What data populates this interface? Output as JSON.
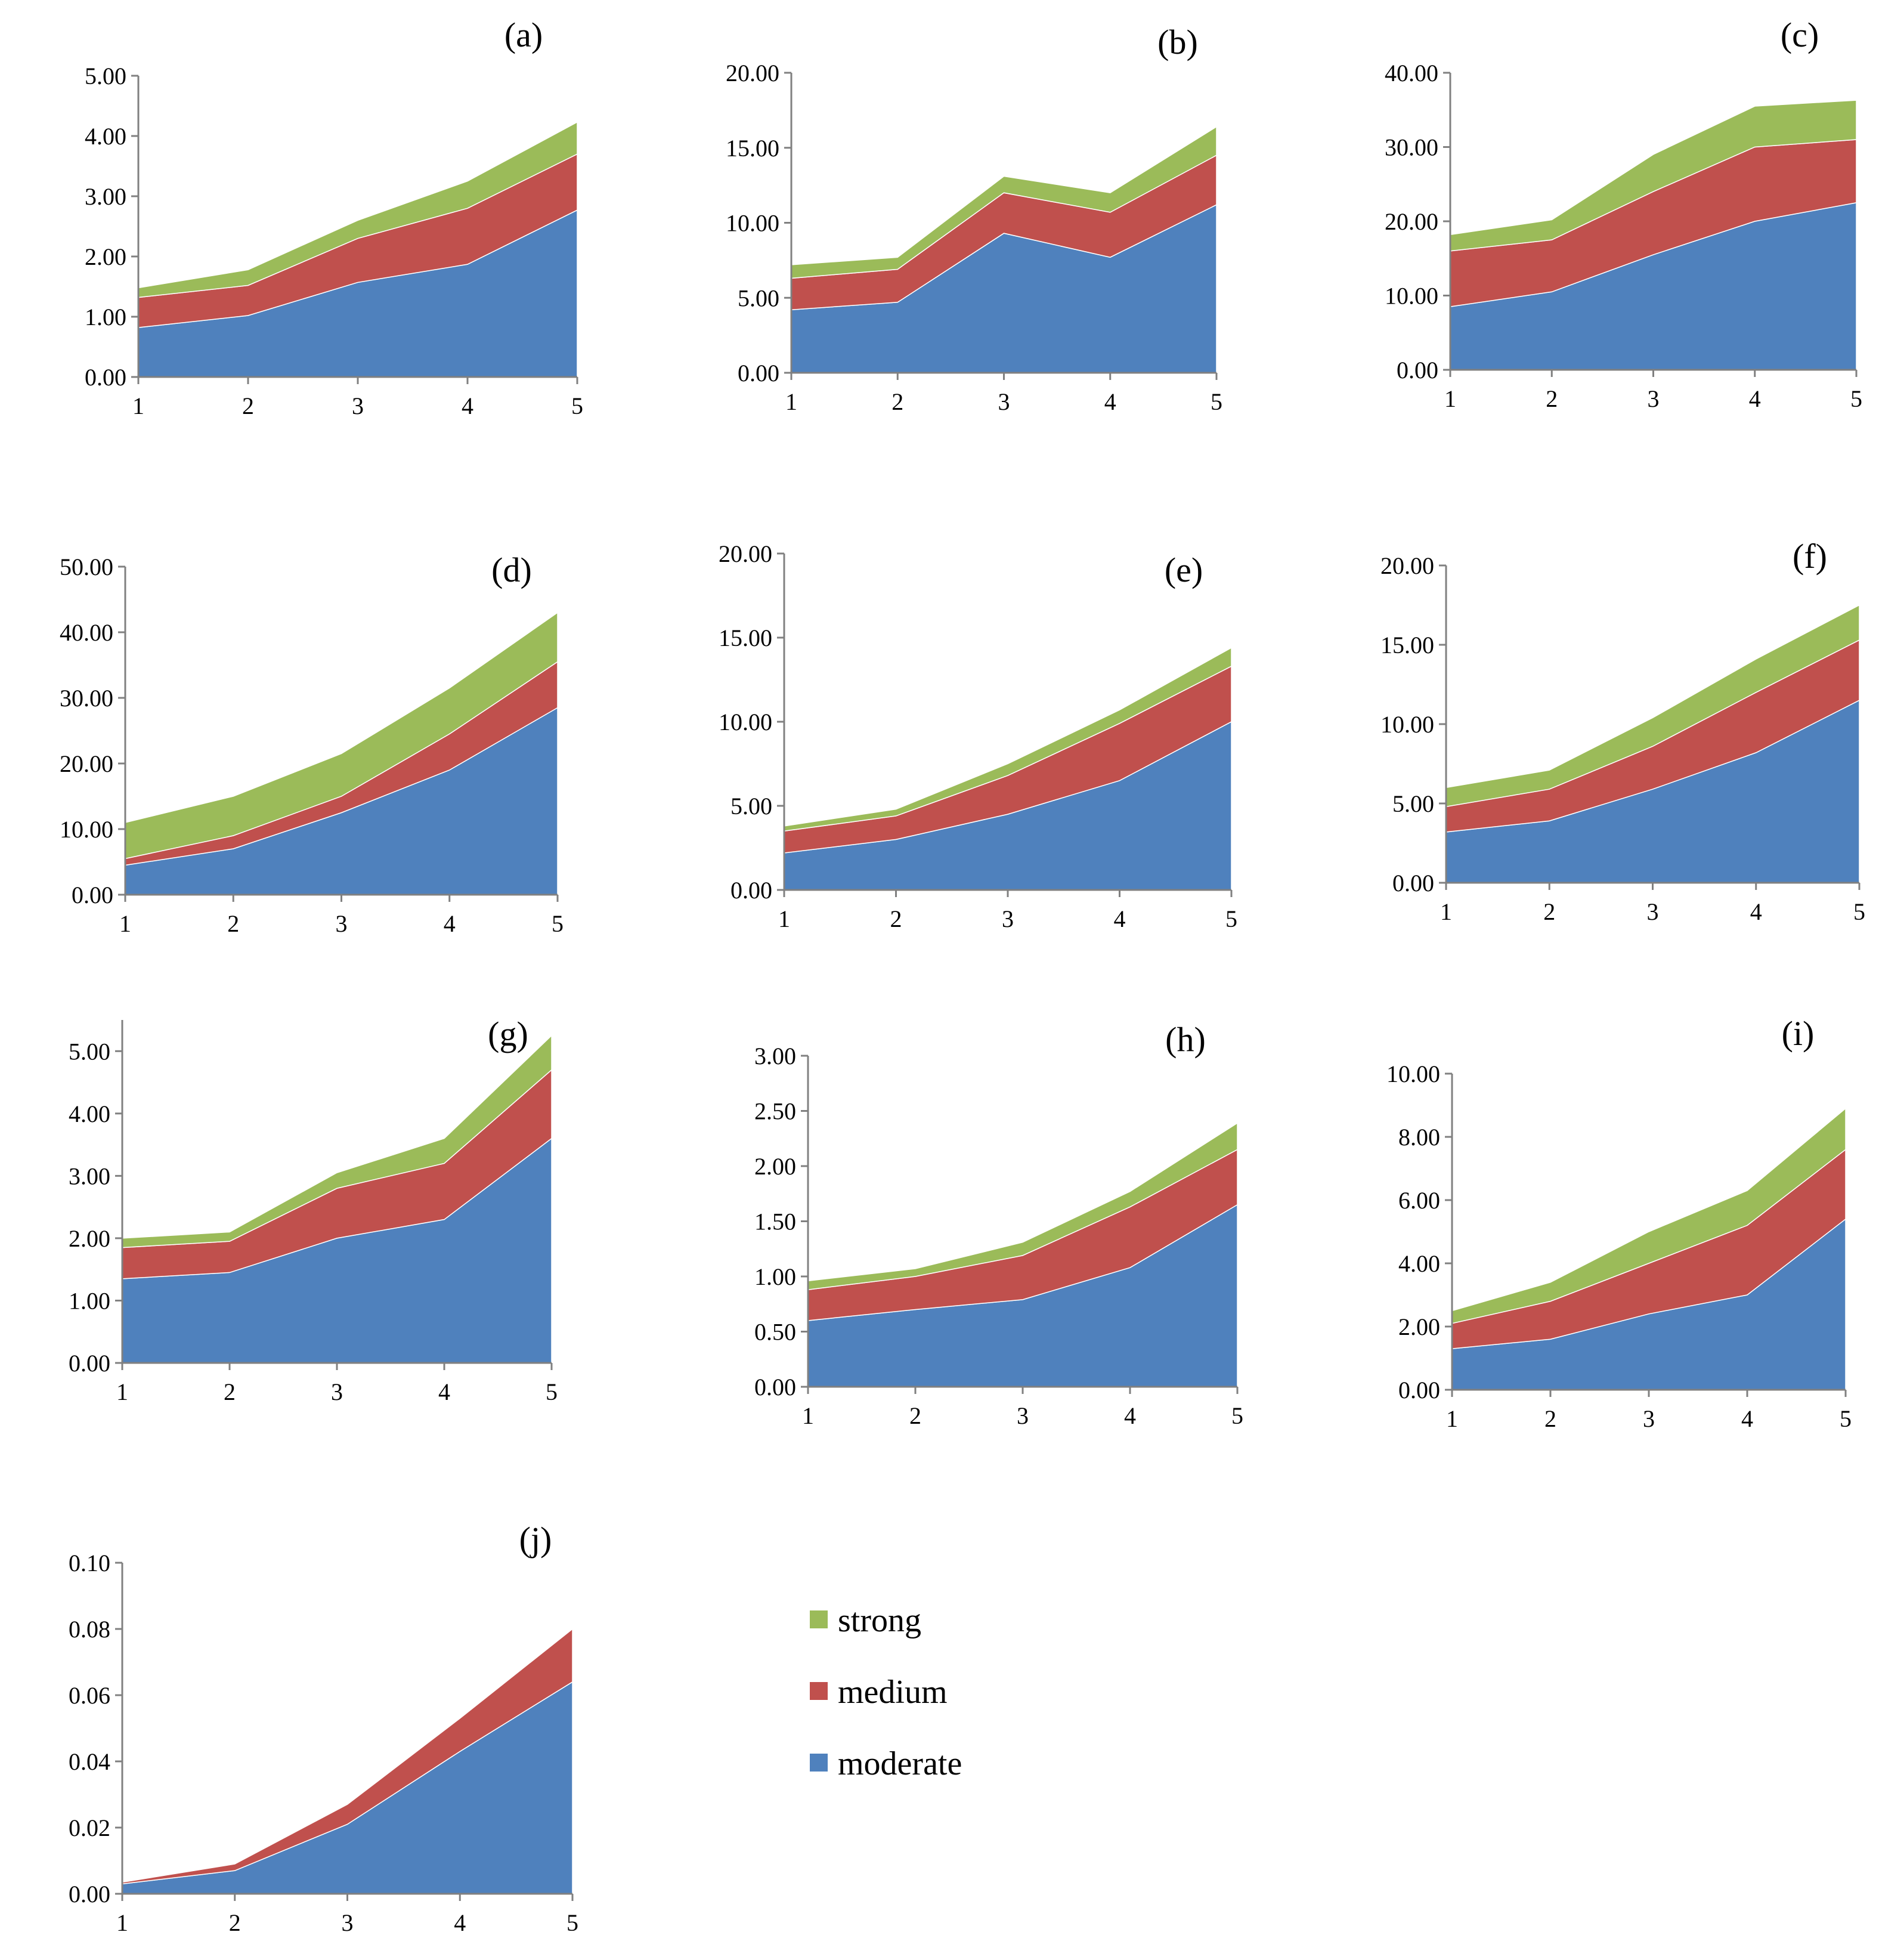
{
  "colors": {
    "moderate": "#4F81BD",
    "medium": "#C0504D",
    "strong": "#9BBB59",
    "axis": "#808080"
  },
  "legend": {
    "items": [
      {
        "key": "strong",
        "label": "strong"
      },
      {
        "key": "medium",
        "label": "medium"
      },
      {
        "key": "moderate",
        "label": "moderate"
      }
    ]
  },
  "chart_data": [
    {
      "panel": "(a)",
      "type": "area",
      "stacked": true,
      "categories": [
        "1",
        "2",
        "3",
        "4",
        "5"
      ],
      "ylim": [
        0,
        5
      ],
      "yticks": [
        "0.00",
        "1.00",
        "2.00",
        "3.00",
        "4.00",
        "5.00"
      ],
      "series": [
        {
          "name": "moderate",
          "values": [
            0.82,
            1.02,
            1.57,
            1.87,
            2.77
          ]
        },
        {
          "name": "medium",
          "values": [
            0.5,
            0.5,
            0.73,
            0.93,
            0.93
          ]
        },
        {
          "name": "strong",
          "values": [
            0.16,
            0.26,
            0.3,
            0.45,
            0.53
          ]
        }
      ]
    },
    {
      "panel": "(b)",
      "type": "area",
      "stacked": true,
      "categories": [
        "1",
        "2",
        "3",
        "4",
        "5"
      ],
      "ylim": [
        0,
        20
      ],
      "yticks": [
        "0.00",
        "5.00",
        "10.00",
        "15.00",
        "20.00"
      ],
      "series": [
        {
          "name": "moderate",
          "values": [
            4.2,
            4.7,
            9.3,
            7.7,
            11.2
          ]
        },
        {
          "name": "medium",
          "values": [
            2.1,
            2.2,
            2.7,
            3.0,
            3.3
          ]
        },
        {
          "name": "strong",
          "values": [
            0.9,
            0.8,
            1.1,
            1.3,
            1.9
          ]
        }
      ]
    },
    {
      "panel": "(c)",
      "type": "area",
      "stacked": true,
      "categories": [
        "1",
        "2",
        "3",
        "4",
        "5"
      ],
      "ylim": [
        0,
        40
      ],
      "yticks": [
        "0.00",
        "10.00",
        "20.00",
        "30.00",
        "40.00"
      ],
      "series": [
        {
          "name": "moderate",
          "values": [
            8.5,
            10.5,
            15.5,
            20.0,
            22.5
          ]
        },
        {
          "name": "medium",
          "values": [
            7.5,
            7.0,
            8.5,
            10.0,
            8.5
          ]
        },
        {
          "name": "strong",
          "values": [
            2.2,
            2.7,
            5.0,
            5.5,
            5.3
          ]
        }
      ]
    },
    {
      "panel": "(d)",
      "type": "area",
      "stacked": true,
      "categories": [
        "1",
        "2",
        "3",
        "4",
        "5"
      ],
      "ylim": [
        0,
        50
      ],
      "yticks": [
        "0.00",
        "10.00",
        "20.00",
        "30.00",
        "40.00",
        "50.00"
      ],
      "series": [
        {
          "name": "moderate",
          "values": [
            4.5,
            7.0,
            12.5,
            19.0,
            28.5
          ]
        },
        {
          "name": "medium",
          "values": [
            1.0,
            2.0,
            2.5,
            5.5,
            7.0
          ]
        },
        {
          "name": "strong",
          "values": [
            5.5,
            6.0,
            6.5,
            7.0,
            7.5
          ]
        }
      ]
    },
    {
      "panel": "(e)",
      "type": "area",
      "stacked": true,
      "categories": [
        "1",
        "2",
        "3",
        "4",
        "5"
      ],
      "ylim": [
        0,
        20
      ],
      "yticks": [
        "0.00",
        "5.00",
        "10.00",
        "15.00",
        "20.00"
      ],
      "series": [
        {
          "name": "moderate",
          "values": [
            2.2,
            3.0,
            4.5,
            6.5,
            10.0
          ]
        },
        {
          "name": "medium",
          "values": [
            1.3,
            1.4,
            2.3,
            3.4,
            3.3
          ]
        },
        {
          "name": "strong",
          "values": [
            0.3,
            0.4,
            0.7,
            0.8,
            1.1
          ]
        }
      ]
    },
    {
      "panel": "(f)",
      "type": "area",
      "stacked": true,
      "categories": [
        "1",
        "2",
        "3",
        "4",
        "5"
      ],
      "ylim": [
        0,
        20
      ],
      "yticks": [
        "0.00",
        "5.00",
        "10.00",
        "15.00",
        "20.00"
      ],
      "series": [
        {
          "name": "moderate",
          "values": [
            3.2,
            3.9,
            5.9,
            8.2,
            11.5
          ]
        },
        {
          "name": "medium",
          "values": [
            1.6,
            2.0,
            2.7,
            3.8,
            3.8
          ]
        },
        {
          "name": "strong",
          "values": [
            1.2,
            1.2,
            1.8,
            2.1,
            2.2
          ]
        }
      ]
    },
    {
      "panel": "(g)",
      "type": "area",
      "stacked": true,
      "categories": [
        "1",
        "2",
        "3",
        "4",
        "5"
      ],
      "ylim": [
        0,
        5.5
      ],
      "yticks": [
        "0.00",
        "1.00",
        "2.00",
        "3.00",
        "4.00",
        "5.00"
      ],
      "series": [
        {
          "name": "moderate",
          "values": [
            1.35,
            1.45,
            2.0,
            2.3,
            3.6
          ]
        },
        {
          "name": "medium",
          "values": [
            0.5,
            0.5,
            0.8,
            0.9,
            1.1
          ]
        },
        {
          "name": "strong",
          "values": [
            0.15,
            0.15,
            0.25,
            0.4,
            0.55
          ]
        }
      ]
    },
    {
      "panel": "(h)",
      "type": "area",
      "stacked": true,
      "categories": [
        "1",
        "2",
        "3",
        "4",
        "5"
      ],
      "ylim": [
        0,
        3
      ],
      "yticks": [
        "0.00",
        "0.50",
        "1.00",
        "1.50",
        "2.00",
        "2.50",
        "3.00"
      ],
      "series": [
        {
          "name": "moderate",
          "values": [
            0.6,
            0.7,
            0.79,
            1.08,
            1.65
          ]
        },
        {
          "name": "medium",
          "values": [
            0.28,
            0.3,
            0.4,
            0.55,
            0.5
          ]
        },
        {
          "name": "strong",
          "values": [
            0.08,
            0.07,
            0.12,
            0.14,
            0.24
          ]
        }
      ]
    },
    {
      "panel": "(i)",
      "type": "area",
      "stacked": true,
      "categories": [
        "1",
        "2",
        "3",
        "4",
        "5"
      ],
      "ylim": [
        0,
        10
      ],
      "yticks": [
        "0.00",
        "2.00",
        "4.00",
        "6.00",
        "8.00",
        "10.00"
      ],
      "series": [
        {
          "name": "moderate",
          "values": [
            1.3,
            1.6,
            2.4,
            3.0,
            5.4
          ]
        },
        {
          "name": "medium",
          "values": [
            0.8,
            1.2,
            1.6,
            2.2,
            2.2
          ]
        },
        {
          "name": "strong",
          "values": [
            0.4,
            0.6,
            1.0,
            1.1,
            1.3
          ]
        }
      ]
    },
    {
      "panel": "(j)",
      "type": "area",
      "stacked": true,
      "categories": [
        "1",
        "2",
        "3",
        "4",
        "5"
      ],
      "ylim": [
        0,
        0.1
      ],
      "yticks": [
        "0.00",
        "0.02",
        "0.04",
        "0.06",
        "0.08",
        "0.10"
      ],
      "series": [
        {
          "name": "moderate",
          "values": [
            0.003,
            0.007,
            0.021,
            0.043,
            0.064
          ]
        },
        {
          "name": "medium",
          "values": [
            0.0005,
            0.002,
            0.006,
            0.01,
            0.016
          ]
        },
        {
          "name": "strong",
          "values": [
            0.0,
            0.0,
            0.0,
            0.0,
            0.0
          ]
        }
      ]
    }
  ]
}
